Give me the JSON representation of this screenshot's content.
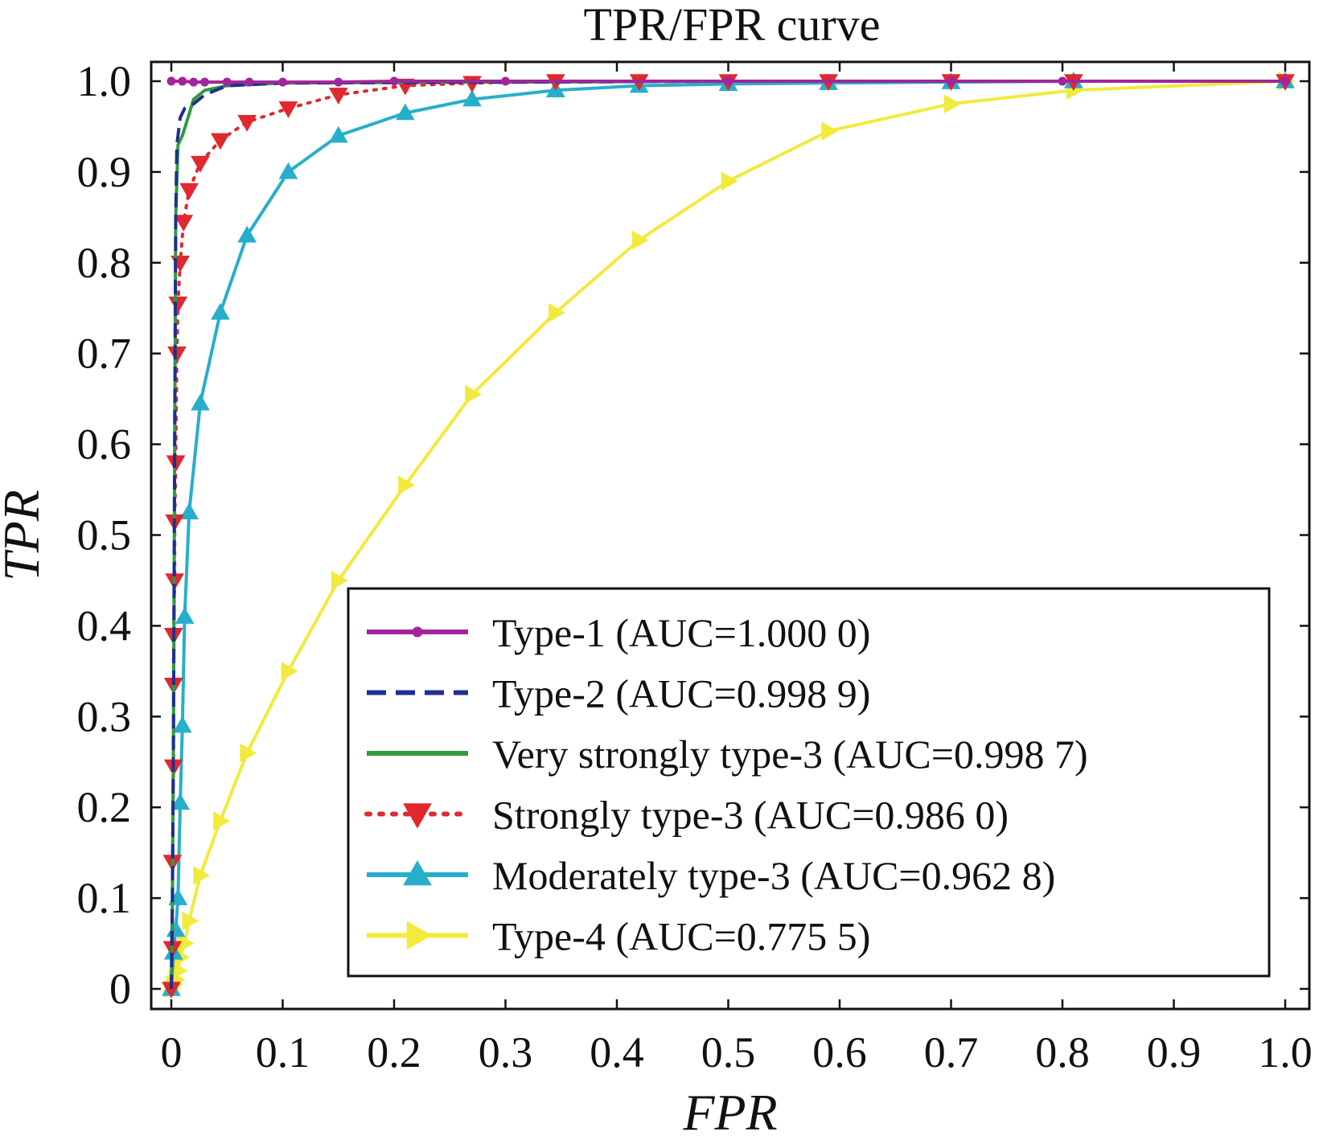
{
  "chart_data": {
    "type": "line",
    "title": "TPR/FPR curve",
    "xlabel": "FPR",
    "ylabel": "TPR",
    "xlim": [
      0,
      1.0
    ],
    "ylim": [
      0,
      1.0
    ],
    "xticks": [
      "0",
      "0.1",
      "0.2",
      "0.3",
      "0.4",
      "0.5",
      "0.6",
      "0.7",
      "0.8",
      "0.9",
      "1.0"
    ],
    "yticks": [
      "0",
      "0.1",
      "0.2",
      "0.3",
      "0.4",
      "0.5",
      "0.6",
      "0.7",
      "0.8",
      "0.9",
      "1.0"
    ],
    "grid": false,
    "legend_position": "bottom-right",
    "series": [
      {
        "name": "Type-1 (AUC=1.000 0)",
        "color": "#a3259a",
        "line_style": "solid",
        "marker": "circle",
        "x": [
          0,
          0.01,
          0.02,
          0.03,
          0.05,
          0.07,
          0.1,
          0.15,
          0.2,
          0.3,
          0.5,
          0.7,
          0.8,
          1.0
        ],
        "y": [
          1.0,
          1.0,
          0.999,
          0.999,
          0.999,
          0.999,
          0.999,
          0.999,
          1.0,
          1.0,
          1.0,
          1.0,
          1.0,
          1.0
        ]
      },
      {
        "name": "Type-2 (AUC=0.998 9)",
        "color": "#1f2f8f",
        "line_style": "dashed",
        "marker": "none",
        "x": [
          0,
          0.001,
          0.002,
          0.003,
          0.004,
          0.005,
          0.008,
          0.012,
          0.02,
          0.03,
          0.05,
          0.1,
          0.3,
          0.5,
          1.0
        ],
        "y": [
          0,
          0.1,
          0.3,
          0.6,
          0.85,
          0.93,
          0.96,
          0.97,
          0.975,
          0.985,
          0.995,
          0.998,
          0.999,
          1.0,
          1.0
        ]
      },
      {
        "name": "Very strongly type-3 (AUC=0.998 7)",
        "color": "#2e9b3e",
        "line_style": "solid",
        "marker": "none",
        "x": [
          0,
          0.001,
          0.002,
          0.003,
          0.004,
          0.006,
          0.01,
          0.015,
          0.02,
          0.03,
          0.05,
          0.1,
          0.3,
          0.5,
          1.0
        ],
        "y": [
          0,
          0.1,
          0.3,
          0.6,
          0.85,
          0.93,
          0.94,
          0.96,
          0.98,
          0.99,
          0.995,
          0.998,
          0.999,
          1.0,
          1.0
        ]
      },
      {
        "name": "Strongly type-3 (AUC=0.986 0)",
        "color": "#e0282e",
        "line_style": "dotted",
        "marker": "triangle-down",
        "x": [
          0,
          0.001,
          0.001,
          0.002,
          0.002,
          0.002,
          0.003,
          0.003,
          0.004,
          0.005,
          0.006,
          0.008,
          0.011,
          0.016,
          0.026,
          0.044,
          0.068,
          0.105,
          0.15,
          0.21,
          0.27,
          0.345,
          0.42,
          0.5,
          0.59,
          0.7,
          0.81,
          1.0
        ],
        "y": [
          0,
          0.045,
          0.14,
          0.245,
          0.335,
          0.39,
          0.45,
          0.515,
          0.58,
          0.7,
          0.755,
          0.8,
          0.845,
          0.88,
          0.91,
          0.935,
          0.955,
          0.97,
          0.985,
          0.995,
          0.998,
          1.0,
          1.0,
          1.0,
          1.0,
          1.0,
          1.0,
          1.0
        ]
      },
      {
        "name": "Moderately type-3 (AUC=0.962 8)",
        "color": "#27aecb",
        "line_style": "solid",
        "marker": "triangle-up",
        "x": [
          0,
          0.002,
          0.004,
          0.006,
          0.008,
          0.01,
          0.012,
          0.016,
          0.026,
          0.044,
          0.068,
          0.105,
          0.15,
          0.21,
          0.27,
          0.345,
          0.42,
          0.5,
          0.59,
          0.7,
          0.81,
          1.0
        ],
        "y": [
          0,
          0.04,
          0.065,
          0.1,
          0.205,
          0.29,
          0.41,
          0.525,
          0.645,
          0.745,
          0.83,
          0.9,
          0.94,
          0.965,
          0.98,
          0.99,
          0.995,
          0.997,
          0.998,
          0.999,
          1.0,
          1.0
        ]
      },
      {
        "name": "Type-4 (AUC=0.775 5)",
        "color": "#f2ea3c",
        "line_style": "solid",
        "marker": "triangle-right",
        "x": [
          0,
          0.002,
          0.004,
          0.006,
          0.008,
          0.012,
          0.016,
          0.026,
          0.044,
          0.068,
          0.105,
          0.15,
          0.21,
          0.27,
          0.345,
          0.42,
          0.5,
          0.59,
          0.7,
          0.81,
          1.0
        ],
        "y": [
          0,
          0.005,
          0.01,
          0.02,
          0.035,
          0.05,
          0.075,
          0.125,
          0.185,
          0.26,
          0.35,
          0.45,
          0.555,
          0.655,
          0.745,
          0.825,
          0.89,
          0.945,
          0.975,
          0.99,
          1.0
        ]
      }
    ]
  }
}
